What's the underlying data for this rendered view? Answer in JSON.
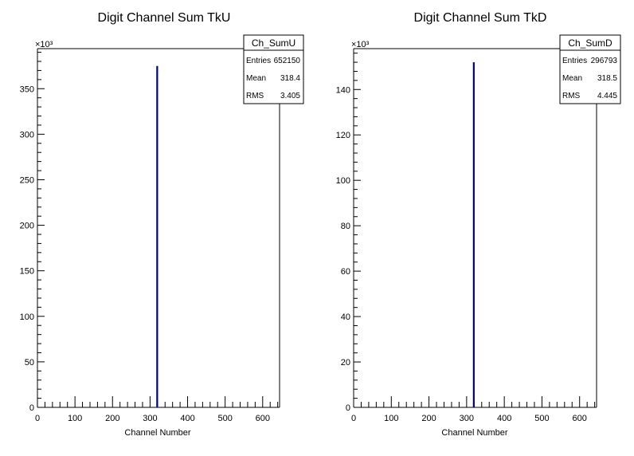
{
  "chart_data": [
    {
      "type": "bar",
      "title": "Digit Channel Sum TkU",
      "xlabel": "Channel Number",
      "ylabel": "",
      "xlim": [
        0,
        645
      ],
      "ylim": [
        0,
        394
      ],
      "y_multiplier": "×10³",
      "x_ticks": [
        0,
        100,
        200,
        300,
        400,
        500,
        600
      ],
      "y_ticks": [
        0,
        50,
        100,
        150,
        200,
        250,
        300,
        350
      ],
      "bins": [
        {
          "x": 319,
          "value": 375
        }
      ],
      "line_color": "#000080",
      "stats": {
        "name": "Ch_SumU",
        "rows": [
          {
            "label": "Entries",
            "value": "652150"
          },
          {
            "label": "Mean",
            "value": "318.4"
          },
          {
            "label": "RMS",
            "value": "3.405"
          }
        ]
      }
    },
    {
      "type": "bar",
      "title": "Digit Channel Sum TkD",
      "xlabel": "Channel Number",
      "ylabel": "",
      "xlim": [
        0,
        645
      ],
      "ylim": [
        0,
        158
      ],
      "y_multiplier": "×10³",
      "x_ticks": [
        0,
        100,
        200,
        300,
        400,
        500,
        600
      ],
      "y_ticks": [
        0,
        20,
        40,
        60,
        80,
        100,
        120,
        140
      ],
      "bins": [
        {
          "x": 319,
          "value": 152
        }
      ],
      "line_color": "#000080",
      "stats": {
        "name": "Ch_SumD",
        "rows": [
          {
            "label": "Entries",
            "value": "296793"
          },
          {
            "label": "Mean",
            "value": "318.5"
          },
          {
            "label": "RMS",
            "value": "4.445"
          }
        ]
      }
    }
  ]
}
